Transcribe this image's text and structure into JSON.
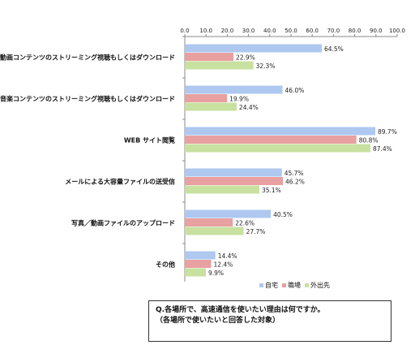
{
  "chart_data": {
    "type": "bar",
    "orientation": "horizontal",
    "xlim": [
      0,
      100
    ],
    "x_ticks": [
      "0.0",
      "10.0",
      "20.0",
      "30.0",
      "40.0",
      "50.0",
      "60.0",
      "70.0",
      "80.0",
      "90.0",
      "100.0"
    ],
    "categories": [
      "動画コンテンツのストリーミング視聴もしくはダウンロード",
      "音楽コンテンツのストリーミング視聴もしくはダウンロード",
      "WEB サイト閲覧",
      "メールによる大容量ファイルの送受信",
      "写真／動画ファイルのアップロード",
      "その他"
    ],
    "series": [
      {
        "name": "自宅",
        "color": "#aec8f0",
        "values": [
          64.5,
          46.0,
          89.7,
          45.7,
          40.5,
          14.4
        ],
        "labels": [
          "64.5%",
          "46.0%",
          "89.7%",
          "45.7%",
          "40.5%",
          "14.4%"
        ]
      },
      {
        "name": "職場",
        "color": "#e8a0a0",
        "values": [
          22.9,
          19.9,
          80.8,
          46.2,
          22.6,
          12.4
        ],
        "labels": [
          "22.9%",
          "19.9%",
          "80.8%",
          "46.2%",
          "22.6%",
          "12.4%"
        ]
      },
      {
        "name": "外出先",
        "color": "#c8e0a0",
        "values": [
          32.3,
          24.4,
          87.4,
          35.1,
          27.7,
          9.9
        ],
        "labels": [
          "32.3%",
          "24.4%",
          "87.4%",
          "35.1%",
          "27.7%",
          "9.9%"
        ]
      }
    ],
    "legend_position": "bottom-right"
  },
  "colors": {
    "axis": "#888888",
    "bar_edge": "#555555"
  },
  "question": {
    "line1": "Q.各場所で、高速通信を使いたい理由は何ですか。",
    "line2": "（各場所で使いたいと回答した対象）"
  }
}
